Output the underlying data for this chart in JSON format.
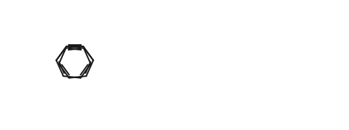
{
  "bg_color": "#ffffff",
  "line_color": "#1a1a1a",
  "line_width": 1.5,
  "fig_width": 5.04,
  "fig_height": 1.88,
  "dpi": 100,
  "xlim": [
    0,
    10.08
  ],
  "ylim": [
    0,
    3.76
  ]
}
